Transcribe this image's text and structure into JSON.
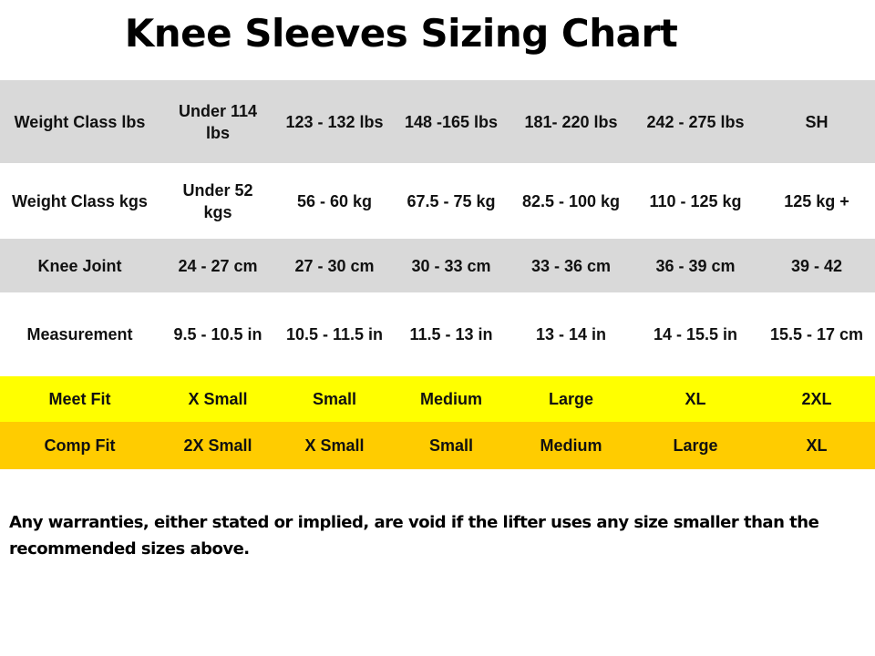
{
  "title": "Knee Sleeves Sizing Chart",
  "table": {
    "rows": [
      {
        "label": "Weight Class lbs",
        "cells": [
          "Under 114 lbs",
          "123 - 132 lbs",
          "148 -165 lbs",
          "181- 220 lbs",
          "242 - 275 lbs",
          "SH"
        ]
      },
      {
        "label": "Weight Class kgs",
        "cells": [
          "Under 52 kgs",
          "56 - 60 kg",
          "67.5 - 75 kg",
          "82.5 - 100 kg",
          "110 - 125 kg",
          "125 kg +"
        ]
      },
      {
        "label": "Knee Joint",
        "cells": [
          "24 - 27 cm",
          "27 - 30 cm",
          "30 - 33 cm",
          "33 - 36 cm",
          "36 - 39 cm",
          "39 - 42"
        ]
      },
      {
        "label": "Measurement",
        "cells": [
          "9.5 - 10.5 in",
          "10.5 - 11.5 in",
          "11.5 - 13 in",
          "13 - 14 in",
          "14 - 15.5 in",
          "15.5 - 17 cm"
        ]
      },
      {
        "label": "Meet Fit",
        "cells": [
          "X Small",
          "Small",
          "Medium",
          "Large",
          "XL",
          "2XL"
        ]
      },
      {
        "label": "Comp Fit",
        "cells": [
          "2X Small",
          "X Small",
          "Small",
          "Medium",
          "Large",
          "XL"
        ]
      }
    ]
  },
  "disclaimer": "Any warranties, either stated or implied, are void if the lifter uses any size smaller than the recommended sizes above.",
  "colors": {
    "gray_row": "#d9d9d9",
    "meet_fit_row": "#ffff00",
    "comp_fit_row": "#ffcc00"
  }
}
